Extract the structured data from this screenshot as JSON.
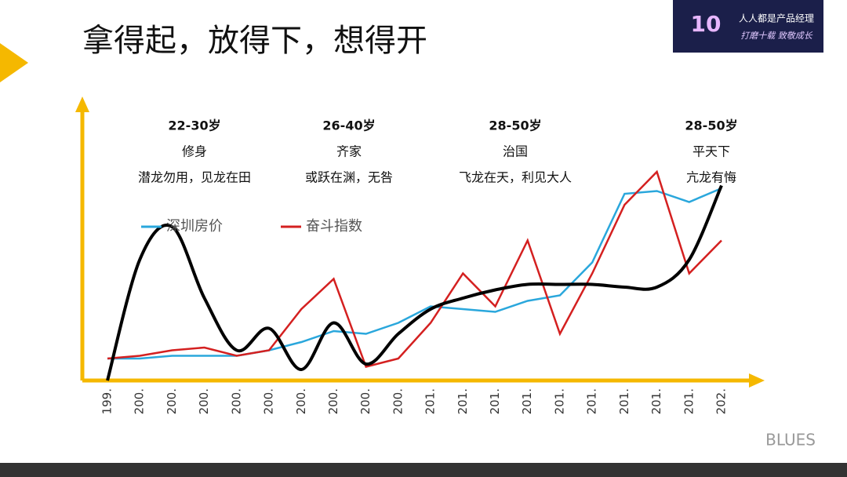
{
  "header": {
    "title": "拿得起，放得下，想得开",
    "logo": {
      "number": "10",
      "brand": "人人都是产品经理",
      "slogan": "打磨十载 致敬成长"
    }
  },
  "watermark": "BLUES",
  "chart_data": {
    "type": "line",
    "categories": [
      "199.",
      "200.",
      "200.",
      "200.",
      "200.",
      "200.",
      "200.",
      "200.",
      "200.",
      "200.",
      "201.",
      "201.",
      "201.",
      "201.",
      "201.",
      "201.",
      "201.",
      "201.",
      "201.",
      "202."
    ],
    "ylim": [
      0,
      100
    ],
    "series": [
      {
        "name": "深圳房价",
        "color": "#2aa7dc",
        "values": [
          8,
          8,
          9,
          9,
          9,
          11,
          14,
          18,
          17,
          21,
          27,
          26,
          25,
          29,
          31,
          43,
          68,
          69,
          65,
          70
        ]
      },
      {
        "name": "奋斗指数",
        "color": "#d42020",
        "values": [
          8,
          9,
          11,
          12,
          9,
          11,
          26,
          37,
          5,
          8,
          21,
          39,
          27,
          51,
          17,
          39,
          64,
          76,
          39,
          51
        ]
      },
      {
        "color": "#000000",
        "values": [
          0,
          44,
          56,
          30,
          11,
          19,
          4,
          21,
          6,
          17,
          26,
          30,
          33,
          35,
          35,
          35,
          34,
          34,
          44,
          71
        ],
        "smooth": true
      }
    ],
    "annotations": [
      {
        "age": "22-30岁",
        "stage": "修身",
        "text": "潜龙勿用，见龙在田"
      },
      {
        "age": "26-40岁",
        "stage": "齐家",
        "text": "或跃在渊，无咎"
      },
      {
        "age": "28-50岁",
        "stage": "治国",
        "text": "飞龙在天，利见大人"
      },
      {
        "age": "28-50岁",
        "stage": "平天下",
        "text": "亢龙有悔"
      }
    ],
    "axis_color": "#f5b800"
  }
}
